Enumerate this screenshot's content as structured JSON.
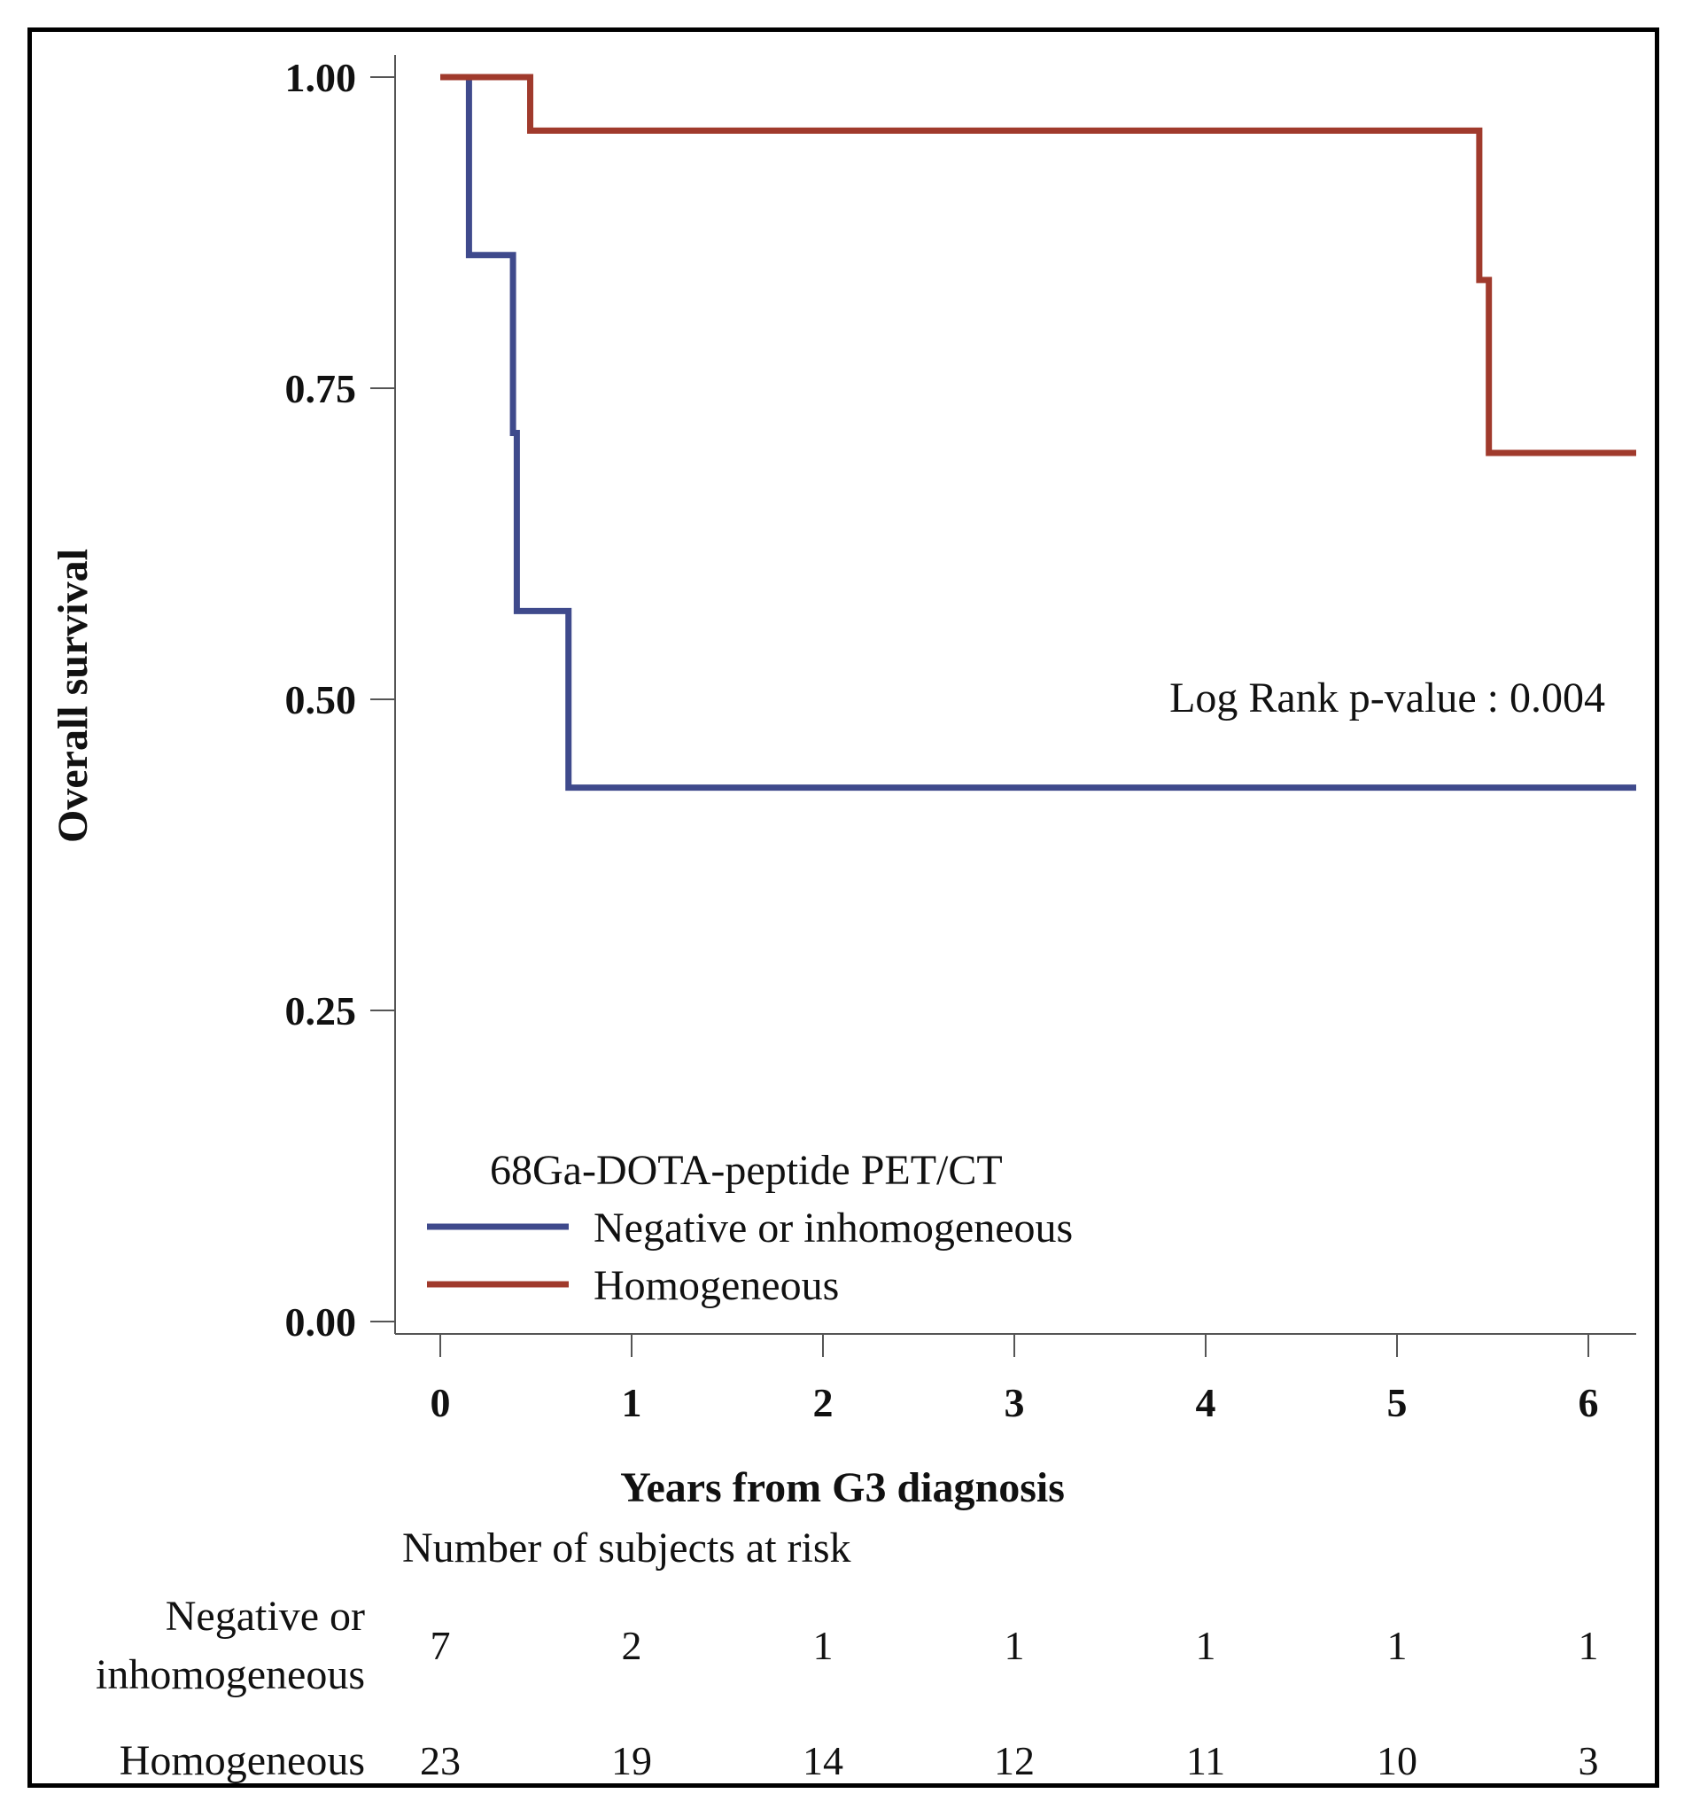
{
  "chart_data": {
    "type": "line",
    "subtype": "kaplan-meier step",
    "ylabel": "Overall survival",
    "xlabel": "Years from G3 diagnosis",
    "xlim": [
      0,
      6.25
    ],
    "ylim": [
      0,
      1
    ],
    "x_ticks": [
      "0",
      "1",
      "2",
      "3",
      "4",
      "5",
      "6"
    ],
    "y_ticks": [
      "0.00",
      "0.25",
      "0.50",
      "0.75",
      "1.00"
    ],
    "grid": false,
    "annotation": "Log Rank p-value :  0.004",
    "legend": {
      "title": "68Ga-DOTA-peptide PET/CT",
      "placement": "bottom-left",
      "items": [
        "Negative or inhomogeneous",
        "Homogeneous"
      ]
    },
    "series": [
      {
        "name": "Negative or inhomogeneous",
        "color": "#3f4a8c",
        "steps": [
          [
            0,
            1.0
          ],
          [
            0.15,
            0.857
          ],
          [
            0.38,
            0.714
          ],
          [
            0.4,
            0.571
          ],
          [
            0.67,
            0.429
          ],
          [
            6.25,
            0.429
          ]
        ]
      },
      {
        "name": "Homogeneous",
        "color": "#a03a2c",
        "steps": [
          [
            0,
            1.0
          ],
          [
            0.47,
            0.957
          ],
          [
            5.43,
            0.837
          ],
          [
            5.48,
            0.698
          ],
          [
            6.25,
            0.698
          ]
        ]
      }
    ],
    "risk_table": {
      "title": "Number of subjects at risk",
      "time_points": [
        0,
        1,
        2,
        3,
        4,
        5,
        6
      ],
      "rows": [
        {
          "label_line1": "Negative or",
          "label_line2": "inhomogeneous",
          "values": [
            "7",
            "2",
            "1",
            "1",
            "1",
            "1",
            "1"
          ]
        },
        {
          "label_line1": "Homogeneous",
          "label_line2": "",
          "values": [
            "23",
            "19",
            "14",
            "12",
            "11",
            "10",
            "3"
          ]
        }
      ]
    }
  }
}
